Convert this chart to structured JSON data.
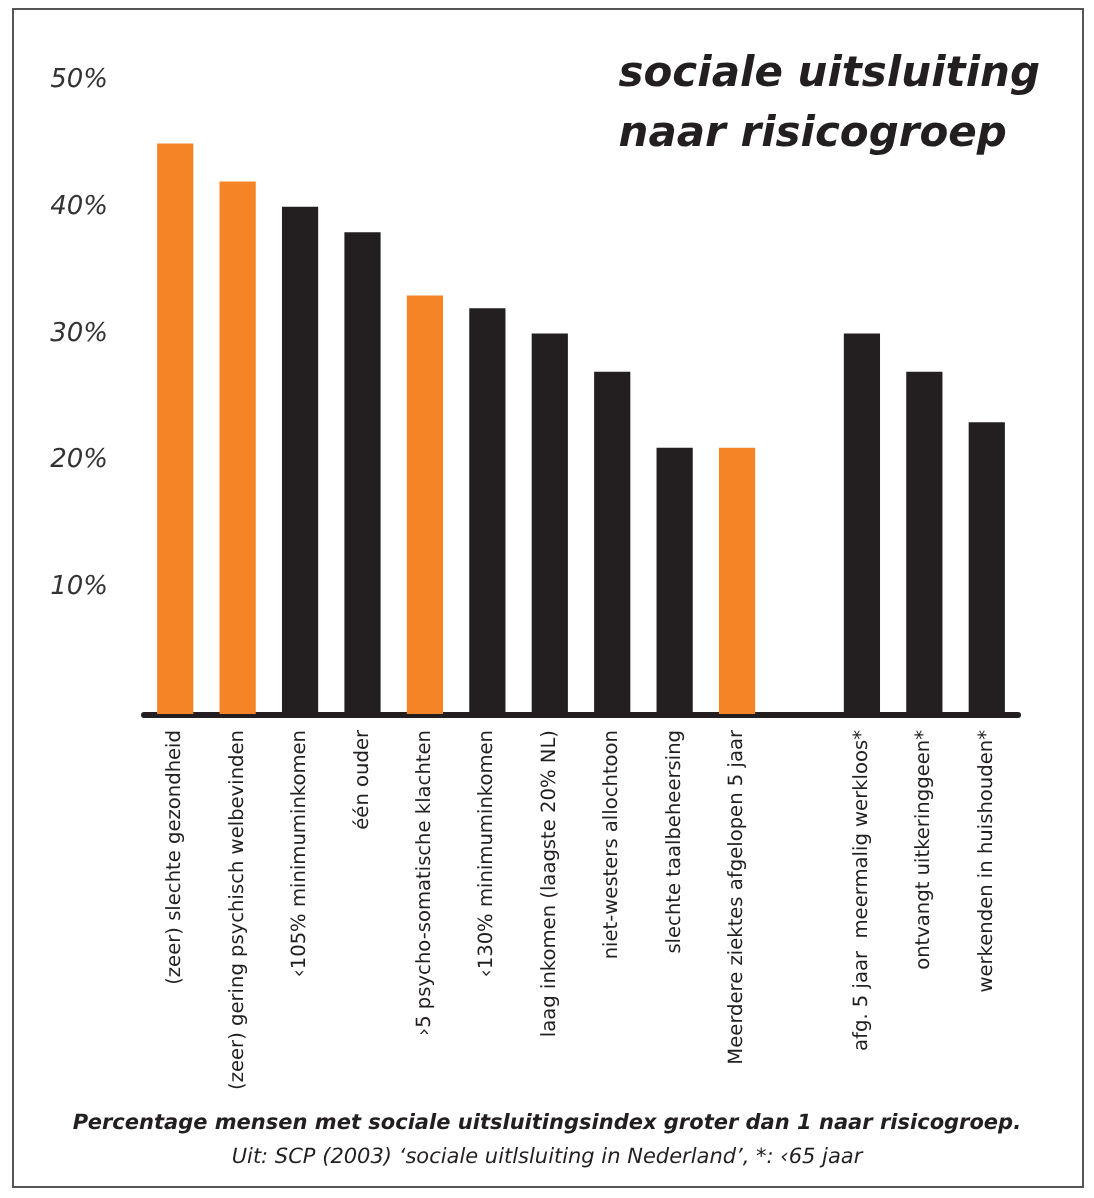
{
  "chart_data": {
    "type": "bar",
    "title": "sociale uitsluiting\nnaar risicogroep",
    "categories": [
      "(zeer) slechte gezondheid",
      "(zeer) gering psychisch welbevinden",
      "‹105% minimuminkomen",
      "één ouder",
      "›5 psycho-somatische klachten",
      "‹130% minimuminkomen",
      "laag inkomen (laagste 20% NL)",
      "niet-westers allochtoon",
      "slechte taalbeheersing",
      "Meerdere ziektes afgelopen 5 jaar",
      null,
      "afg. 5 jaar  meermalig werkloos*",
      "ontvangt uitkeringgeen*",
      "werkenden in huishouden*"
    ],
    "values": [
      45,
      42,
      40,
      38,
      33,
      32,
      30,
      27,
      21,
      21,
      null,
      30,
      27,
      23
    ],
    "colors": [
      "#f58426",
      "#f58426",
      "#231f20",
      "#231f20",
      "#f58426",
      "#231f20",
      "#231f20",
      "#231f20",
      "#231f20",
      "#f58426",
      "#231f20",
      "#231f20",
      "#231f20",
      "#231f20"
    ],
    "ylim": [
      0,
      50
    ],
    "yticks": [
      {
        "value": 10,
        "label": "10%"
      },
      {
        "value": 20,
        "label": "20%"
      },
      {
        "value": 30,
        "label": "30%"
      },
      {
        "value": 40,
        "label": "40%"
      },
      {
        "value": 50,
        "label": "50%"
      }
    ],
    "annotations": [
      "Percentage mensen met sociale uitsluitingsindex groter dan 1 naar risicogroep.",
      "Uit: SCP (2003) ‘sociale uitlsluiting in Nederland’, *: ‹65 jaar"
    ]
  }
}
